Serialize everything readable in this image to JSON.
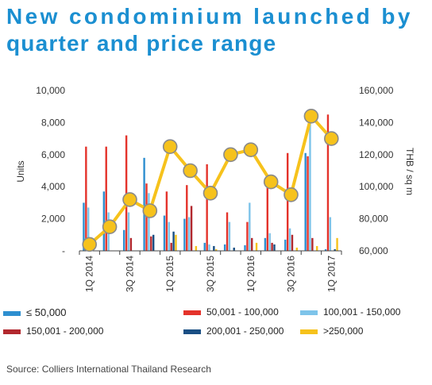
{
  "title": {
    "line1": "New condominium launched by",
    "line2": "quarter and price range"
  },
  "source": "Source: Colliers International Thailand Research",
  "chart_data": {
    "type": "bar",
    "left_axis": {
      "label": "Units",
      "ylim": [
        0,
        10000
      ],
      "ticks": [
        "-",
        "2,000",
        "4,000",
        "6,000",
        "8,000",
        "10,000"
      ]
    },
    "right_axis": {
      "label": "THB / sq m",
      "ylim": [
        60000,
        160000
      ],
      "ticks": [
        "60,000",
        "80,000",
        "100,000",
        "120,000",
        "140,000",
        "160,000"
      ]
    },
    "tick_labels": [
      "1Q 2014",
      "3Q 2014",
      "1Q 2015",
      "3Q 2015",
      "1Q 2016",
      "3Q 2016",
      "1Q 2017"
    ],
    "n_quarters": 13,
    "legend_position": "bottom",
    "series": [
      {
        "name": "≤ 50,000",
        "color": "#2e8fd0",
        "values": [
          3000,
          3700,
          1300,
          5800,
          2200,
          2000,
          500,
          400,
          350,
          800,
          700,
          6100,
          100
        ]
      },
      {
        "name": "50,001 - 100,000",
        "color": "#e4332b",
        "values": [
          6500,
          6500,
          7200,
          4200,
          3700,
          4100,
          5400,
          2400,
          1800,
          4300,
          6100,
          5900,
          8500
        ]
      },
      {
        "name": "100,001 - 150,000",
        "color": "#7ec4ea",
        "values": [
          2700,
          2400,
          2400,
          3600,
          1800,
          2100,
          400,
          1800,
          3000,
          1100,
          1400,
          8700,
          2100
        ]
      },
      {
        "name": "150,001 - 200,000",
        "color": "#b2282e",
        "values": [
          0,
          0,
          800,
          900,
          500,
          2800,
          0,
          0,
          800,
          500,
          1000,
          800,
          0
        ]
      },
      {
        "name": "200,001 - 250,000",
        "color": "#1a4f84",
        "values": [
          0,
          0,
          0,
          1000,
          1200,
          0,
          300,
          200,
          0,
          400,
          0,
          0,
          100
        ]
      },
      {
        "name": ">250,000",
        "color": "#f6c21c",
        "values": [
          0,
          0,
          0,
          0,
          1000,
          300,
          100,
          0,
          500,
          0,
          200,
          300,
          800
        ]
      }
    ],
    "line_series": {
      "name": ">250,000",
      "axis": "right",
      "color": "#f6c21c",
      "values": [
        64000,
        75000,
        92000,
        85000,
        125000,
        110000,
        96000,
        120000,
        123000,
        103000,
        95000,
        144000,
        130000
      ]
    }
  }
}
